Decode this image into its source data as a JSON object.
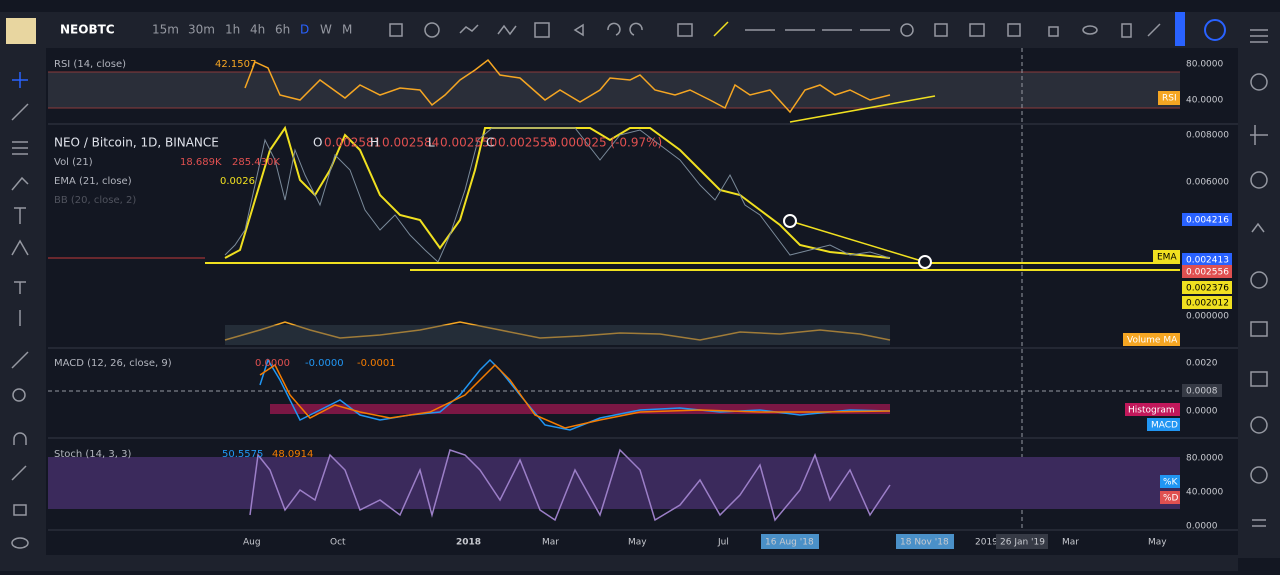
{
  "toolbar": {
    "symbol": "NEOBTC",
    "intervals": [
      "15m",
      "30m",
      "1h",
      "4h",
      "6h",
      "D",
      "W",
      "M"
    ]
  },
  "rsi": {
    "title": "RSI (14, close)",
    "value": "42.1507",
    "axis": [
      "80.0000",
      "40.0000"
    ],
    "badge": "RSI"
  },
  "main": {
    "title": "NEO / Bitcoin, 1D, BINANCE",
    "ohlc": [
      "O",
      "0.002581",
      "H",
      "0.002584",
      "L",
      "0.002550",
      "C",
      "0.002555",
      "-0.000025 (-0.97%)"
    ],
    "vol": [
      "Vol (21)",
      "18.689K",
      "285.430K"
    ],
    "ema": [
      "EMA (21, close)",
      "0.0026"
    ],
    "bb": "BB (20, close, 2)",
    "axis": [
      "0.008000",
      "0.006000",
      "0.004216",
      "0.002413",
      "0.002556",
      "0.002376",
      "0.002012",
      "0.000000"
    ],
    "badges": [
      "EMA",
      "Volume MA"
    ]
  },
  "macd": {
    "title": "MACD (12, 26, close, 9)",
    "values": [
      "0.0000",
      "-0.0000",
      "-0.0001"
    ],
    "axis": [
      "0.0020",
      "0.0008",
      "0.0000"
    ],
    "badges": [
      "Histogram",
      "MACD"
    ]
  },
  "stoch": {
    "title": "Stoch (14, 3, 3)",
    "values": [
      "50.5575",
      "48.0914"
    ],
    "axis": [
      "80.0000",
      "40.0000",
      "0.0000"
    ],
    "badges": [
      "%K",
      "%D"
    ]
  },
  "time_axis": [
    "Aug",
    "Oct",
    "2018",
    "Mar",
    "May",
    "Jul",
    "16 Aug '18",
    "18 Nov '18",
    "2019",
    "26 Jan '19",
    "Mar",
    "May"
  ]
}
